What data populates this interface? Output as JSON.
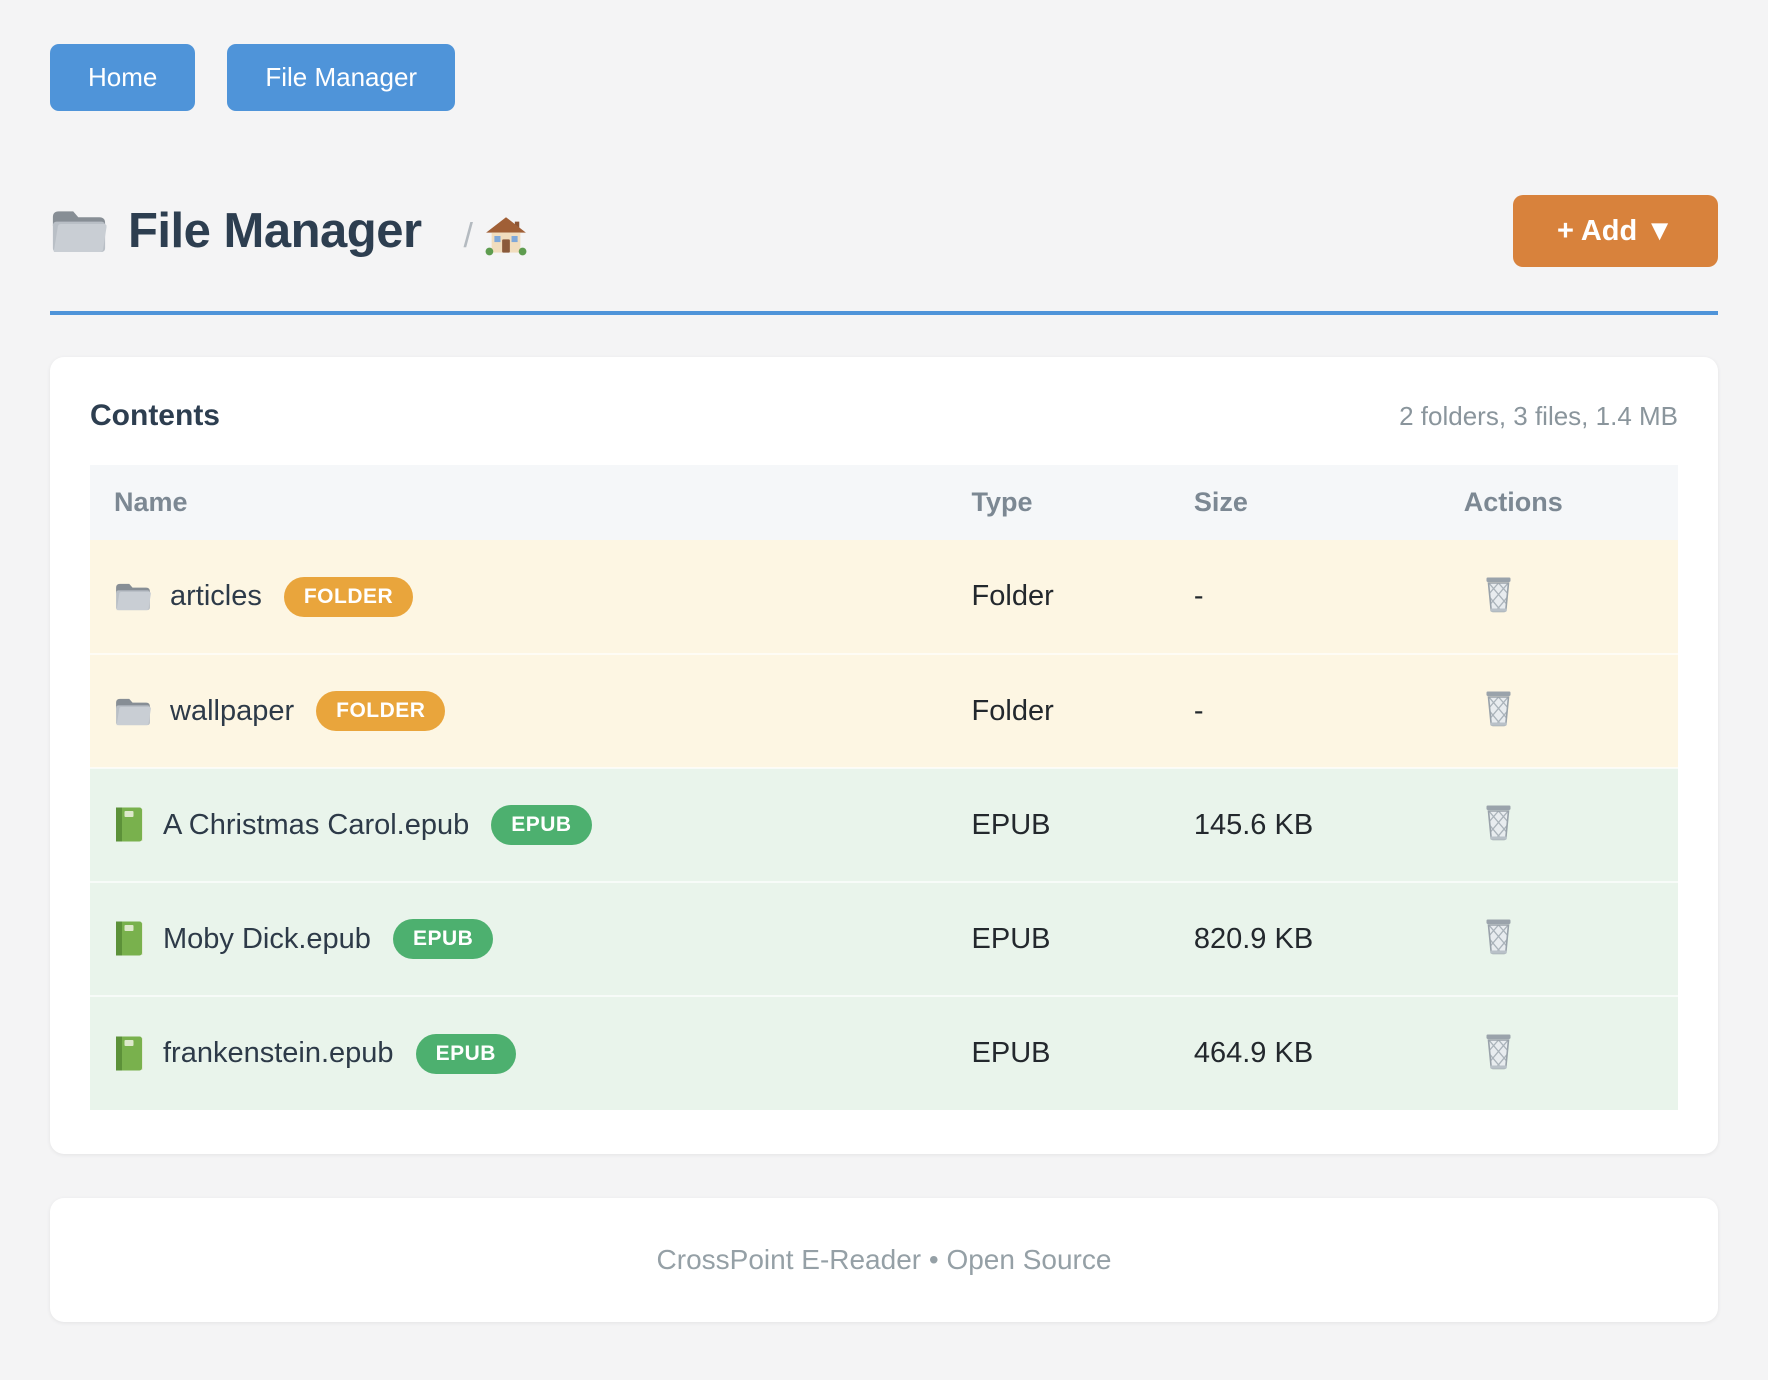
{
  "nav": {
    "home_label": "Home",
    "file_manager_label": "File Manager"
  },
  "header": {
    "title": "File Manager",
    "title_icon": "folder-icon",
    "breadcrumb_separator": "/",
    "breadcrumb_icon": "house-icon",
    "add_button_label": "+ Add ▼"
  },
  "contents": {
    "heading": "Contents",
    "summary": "2 folders, 3 files, 1.4 MB"
  },
  "table": {
    "columns": [
      "Name",
      "Type",
      "Size",
      "Actions"
    ],
    "rows": [
      {
        "name": "articles",
        "badge": "FOLDER",
        "type": "Folder",
        "size": "-",
        "kind": "folder",
        "icon": "folder-icon",
        "action_icon": "trash-icon"
      },
      {
        "name": "wallpaper",
        "badge": "FOLDER",
        "type": "Folder",
        "size": "-",
        "kind": "folder",
        "icon": "folder-icon",
        "action_icon": "trash-icon"
      },
      {
        "name": "A Christmas Carol.epub",
        "badge": "EPUB",
        "type": "EPUB",
        "size": "145.6 KB",
        "kind": "epub",
        "icon": "book-icon",
        "action_icon": "trash-icon"
      },
      {
        "name": "Moby Dick.epub",
        "badge": "EPUB",
        "type": "EPUB",
        "size": "820.9 KB",
        "kind": "epub",
        "icon": "book-icon",
        "action_icon": "trash-icon"
      },
      {
        "name": "frankenstein.epub",
        "badge": "EPUB",
        "type": "EPUB",
        "size": "464.9 KB",
        "kind": "epub",
        "icon": "book-icon",
        "action_icon": "trash-icon"
      }
    ]
  },
  "footer": {
    "text": "CrossPoint E-Reader • Open Source"
  },
  "colors": {
    "accent_blue": "#4f94d9",
    "accent_orange": "#d8823c",
    "badge_orange": "#e9a53c",
    "badge_green": "#4db06f",
    "folder_row_bg": "#fdf6e3",
    "epub_row_bg": "#e9f4eb",
    "title_text": "#2d3e50",
    "muted_text": "#8a959c"
  }
}
